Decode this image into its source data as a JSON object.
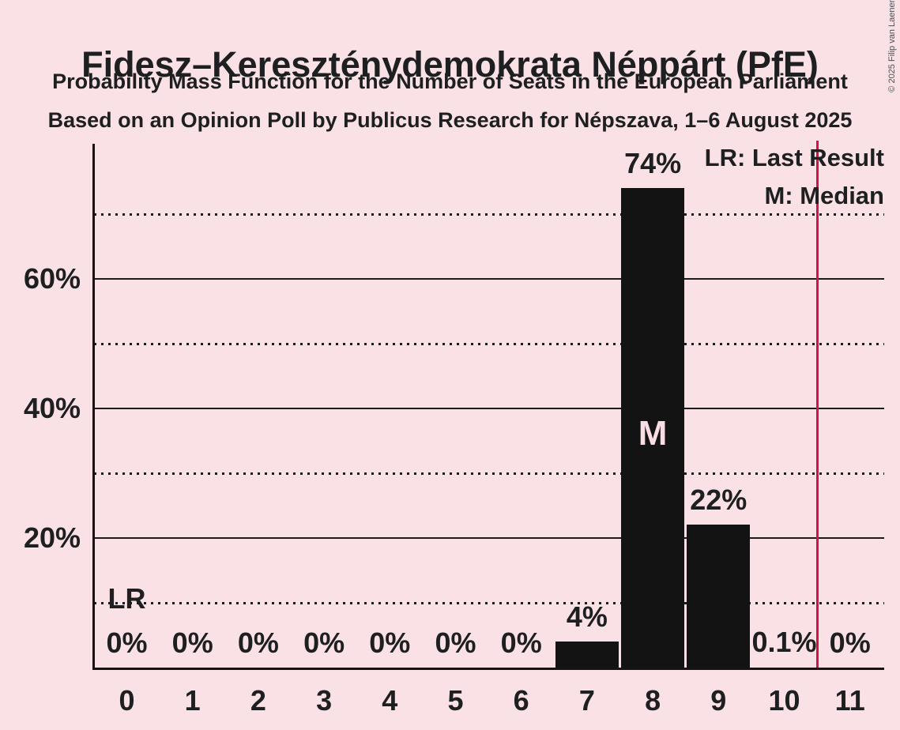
{
  "header": {
    "title": "Fidesz–Kereszténydemokrata Néppárt (PfE)",
    "subtitle": "Probability Mass Function for the Number of Seats in the European Parliament",
    "source_line": "Based on an Opinion Poll by Publicus Research for Népszava, 1–6 August 2025"
  },
  "copyright": "© 2025 Filip van Laenen",
  "legend": {
    "last_result": "LR: Last Result",
    "median": "M: Median"
  },
  "markers": {
    "last_result": "LR",
    "median": "M"
  },
  "colors": {
    "background": "#fae1e5",
    "bar": "#131313",
    "text": "#1d1f20",
    "last_result_line": "#d31245",
    "median_text": "#f8dde2"
  },
  "chart_data": {
    "type": "bar",
    "title": "Probability Mass Function for the Number of Seats in the European Parliament",
    "xlabel": "",
    "ylabel": "",
    "categories": [
      "0",
      "1",
      "2",
      "3",
      "4",
      "5",
      "6",
      "7",
      "8",
      "9",
      "10",
      "11"
    ],
    "values": [
      0,
      0,
      0,
      0,
      0,
      0,
      0,
      4,
      74,
      22,
      0.1,
      0
    ],
    "value_labels": [
      "0%",
      "0%",
      "0%",
      "0%",
      "0%",
      "0%",
      "0%",
      "4%",
      "74%",
      "22%",
      "0.1%",
      "0%"
    ],
    "y_tick_values": [
      20,
      40,
      60
    ],
    "y_tick_labels": [
      "20%",
      "40%",
      "60%"
    ],
    "solid_gridlines_pct": [
      20,
      40,
      60
    ],
    "dotted_gridlines_pct": [
      10,
      30,
      50,
      70
    ],
    "ylim": [
      0,
      80.8
    ],
    "grid": "horizontal",
    "legend_position": "top-right",
    "median_category": "8",
    "last_result_x": 10.5
  }
}
